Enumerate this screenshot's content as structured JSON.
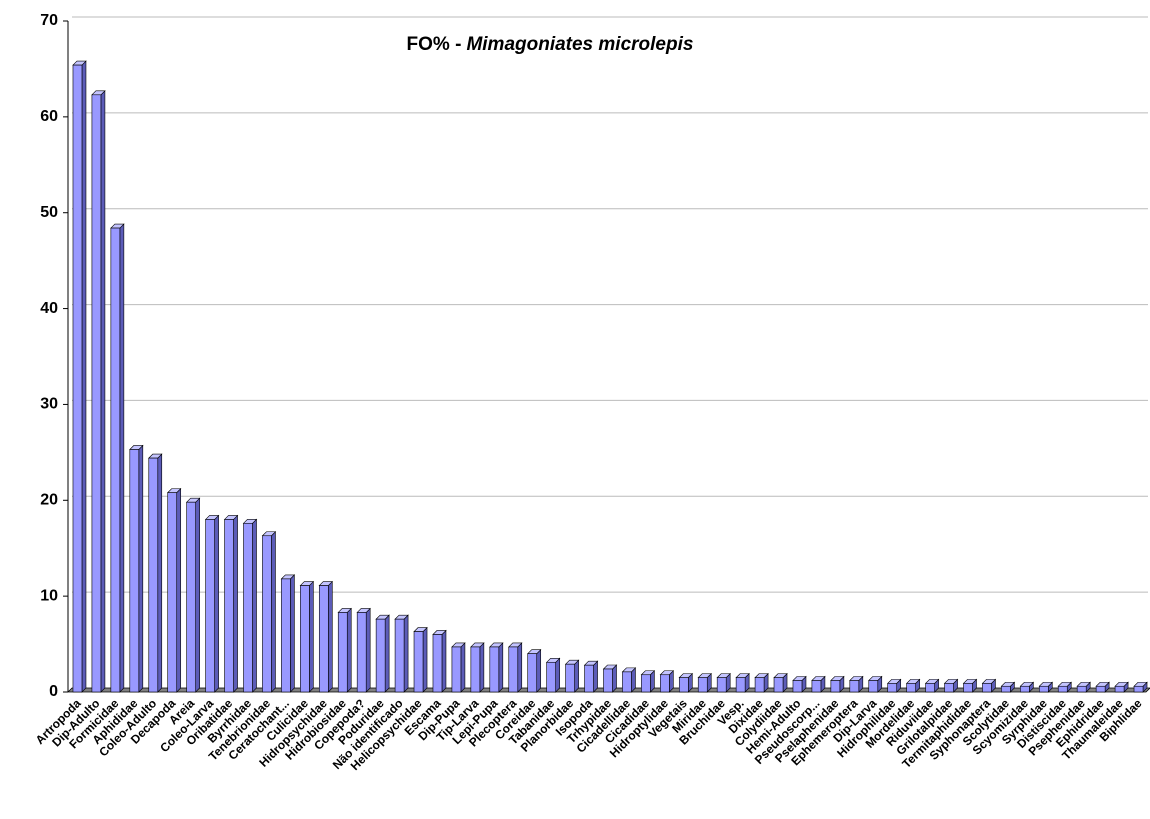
{
  "chart_data": {
    "type": "bar",
    "title_parts": [
      "FO% -",
      "Mimagoniates microlepis"
    ],
    "categories": [
      "Artropoda",
      "Dip-Adulto",
      "Formicidae",
      "Aphididae",
      "Coleo-Adulto",
      "Decapoda",
      "Areia",
      "Coleo-Larva",
      "Oribatidae",
      "Byrrhidae",
      "Tenebrionidae",
      "Ceratochant...",
      "Culicidae",
      "Hidropsychidae",
      "Hidrobiosidae",
      "Copepoda?",
      "Poduridae",
      "Não identificado",
      "Helicopsychidae",
      "Escama",
      "Dip-Pupa",
      "Tip-Larva",
      "Lepi-Pupa",
      "Plecoptera",
      "Coreidae",
      "Tabanidae",
      "Planorbidae",
      "Isopoda",
      "Trhypidae",
      "Cicadellidae",
      "Cicadidae",
      "Hidroptylidae",
      "Vegetais",
      "Miridae",
      "Bruchidae",
      "Vesp.",
      "Dixidae",
      "Colydiidae",
      "Hemi-Adulto",
      "Pseudoscorp...",
      "Pselaphenidae",
      "Ephemeroptera",
      "Dip-Larva",
      "Hidrophilidae",
      "Mordelidae",
      "Riduviidae",
      "Grilotalpidae",
      "Termitaphididae",
      "Syphonaptera",
      "Scolytidae",
      "Scyomizidae",
      "Syrphidae",
      "Distiscidae",
      "Psephenidae",
      "Ephidridae",
      "Thaumaleidae",
      "Biphlidae"
    ],
    "values": [
      65.4,
      62.3,
      48.4,
      25.3,
      24.4,
      20.8,
      19.8,
      18.0,
      18.0,
      17.6,
      16.3,
      11.8,
      11.1,
      11.1,
      8.3,
      8.3,
      7.6,
      7.6,
      6.3,
      6.0,
      4.7,
      4.7,
      4.7,
      4.7,
      4.0,
      3.1,
      2.9,
      2.8,
      2.4,
      2.1,
      1.8,
      1.8,
      1.5,
      1.5,
      1.5,
      1.5,
      1.5,
      1.5,
      1.2,
      1.2,
      1.2,
      1.2,
      1.2,
      0.9,
      0.9,
      0.9,
      0.9,
      0.9,
      0.9,
      0.6,
      0.6,
      0.6,
      0.6,
      0.6,
      0.6,
      0.6,
      0.6
    ],
    "color": "#9999ff",
    "ylim": [
      0,
      70
    ],
    "yticks": [
      0,
      10,
      20,
      30,
      40,
      50,
      60,
      70
    ],
    "grid": true
  }
}
